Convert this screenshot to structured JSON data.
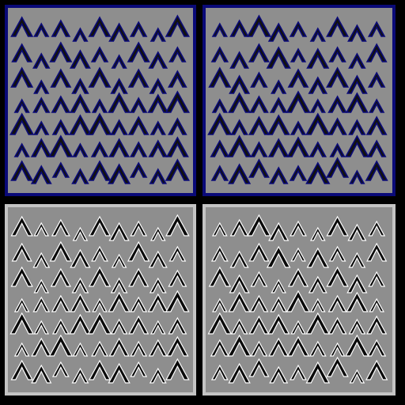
{
  "colors": {
    "page_background": "#000000",
    "panel_fill": "#8e8e8e",
    "top_border": "#0a0a78",
    "top_glyph_fill": "#111111",
    "top_glyph_outline": "#0a0a78",
    "bottom_border": "#c4c4c4",
    "bottom_glyph_fill": "#0a0a0a",
    "bottom_glyph_outline": "#ffffff"
  },
  "panels": [
    {
      "id": "panel-top-left",
      "style": "blue-outline",
      "pattern": "A"
    },
    {
      "id": "panel-top-right",
      "style": "blue-outline",
      "pattern": "B"
    },
    {
      "id": "panel-bottom-left",
      "style": "white-outline",
      "pattern": "A"
    },
    {
      "id": "panel-bottom-right",
      "style": "white-outline",
      "pattern": "B"
    }
  ],
  "glyph": "chevron-caret"
}
